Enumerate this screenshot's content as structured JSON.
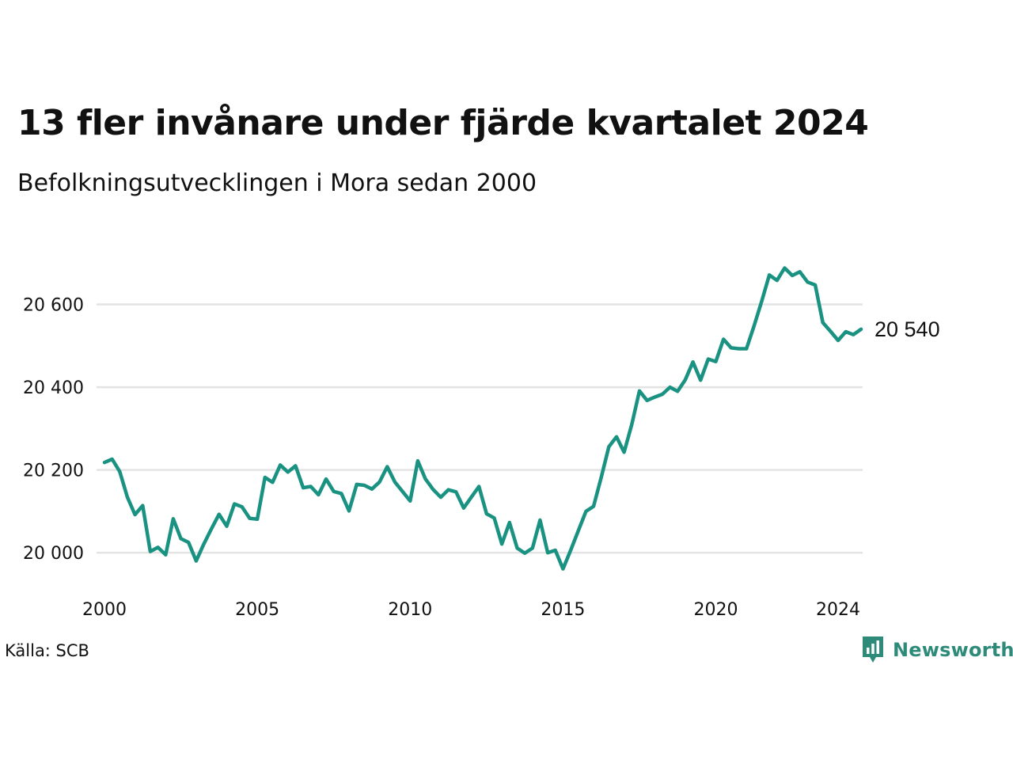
{
  "title": "13 fler invånare under fjärde kvartalet 2024",
  "subtitle": "Befolkningsutvecklingen i Mora sedan 2000",
  "source": "Källa: SCB",
  "brand": {
    "name": "Newsworthy",
    "icon": "newsworthy-logo-icon",
    "color": "#2e8b79"
  },
  "chart_data": {
    "type": "line",
    "series": [
      {
        "color": "#1a9282",
        "x": [
          2000.0,
          2000.25,
          2000.5,
          2000.75,
          2001.0,
          2001.25,
          2001.5,
          2001.75,
          2002.0,
          2002.25,
          2002.5,
          2002.75,
          2003.0,
          2003.25,
          2003.5,
          2003.75,
          2004.0,
          2004.25,
          2004.5,
          2004.75,
          2005.0,
          2005.25,
          2005.5,
          2005.75,
          2006.0,
          2006.25,
          2006.5,
          2006.75,
          2007.0,
          2007.25,
          2007.5,
          2007.75,
          2008.0,
          2008.25,
          2008.5,
          2008.75,
          2009.0,
          2009.25,
          2009.5,
          2009.75,
          2010.0,
          2010.25,
          2010.5,
          2010.75,
          2011.0,
          2011.25,
          2011.5,
          2011.75,
          2012.0,
          2012.25,
          2012.5,
          2012.75,
          2013.0,
          2013.25,
          2013.5,
          2013.75,
          2014.0,
          2014.25,
          2014.5,
          2014.75,
          2015.0,
          2015.25,
          2015.5,
          2015.75,
          2016.0,
          2016.25,
          2016.5,
          2016.75,
          2017.0,
          2017.25,
          2017.5,
          2017.75,
          2018.0,
          2018.25,
          2018.5,
          2018.75,
          2019.0,
          2019.25,
          2019.5,
          2019.75,
          2020.0,
          2020.25,
          2020.5,
          2020.75,
          2021.0,
          2021.25,
          2021.5,
          2021.75,
          2022.0,
          2022.25,
          2022.5,
          2022.75,
          2023.0,
          2023.25,
          2023.5,
          2023.75,
          2024.0,
          2024.25,
          2024.5,
          2024.75
        ],
        "values": [
          20218,
          20226,
          20196,
          20134,
          20092,
          20114,
          20003,
          20013,
          19995,
          20082,
          20034,
          20025,
          19980,
          20021,
          20058,
          20093,
          20064,
          20118,
          20111,
          20083,
          20081,
          20182,
          20170,
          20212,
          20195,
          20210,
          20157,
          20160,
          20140,
          20178,
          20148,
          20143,
          20101,
          20165,
          20163,
          20154,
          20171,
          20208,
          20171,
          20148,
          20125,
          20222,
          20178,
          20153,
          20134,
          20152,
          20147,
          20108,
          20134,
          20160,
          20094,
          20084,
          20021,
          20073,
          20011,
          19999,
          20011,
          20079,
          20000,
          20006,
          19961,
          20006,
          20053,
          20100,
          20112,
          20182,
          20256,
          20280,
          20243,
          20310,
          20391,
          20368,
          20376,
          20383,
          20400,
          20390,
          20418,
          20461,
          20417,
          20468,
          20462,
          20516,
          20495,
          20493,
          20493,
          20548,
          20608,
          20671,
          20658,
          20688,
          20670,
          20679,
          20654,
          20647,
          20556,
          20535,
          20513,
          20534,
          20527,
          20540
        ]
      }
    ],
    "end_label": "20 540",
    "x_ticks": [
      2000,
      2005,
      2010,
      2015,
      2020,
      2024
    ],
    "x_tick_labels": [
      "2000",
      "2005",
      "2010",
      "2015",
      "2020",
      "2024"
    ],
    "y_ticks": [
      20000,
      20200,
      20400,
      20600
    ],
    "y_tick_labels": [
      "20 000",
      "20 200",
      "20 400",
      "20 600"
    ],
    "xlim": [
      2000,
      2024.75
    ],
    "ylim": [
      19920,
      20800
    ],
    "grid": "horizontal",
    "legend": "none"
  }
}
